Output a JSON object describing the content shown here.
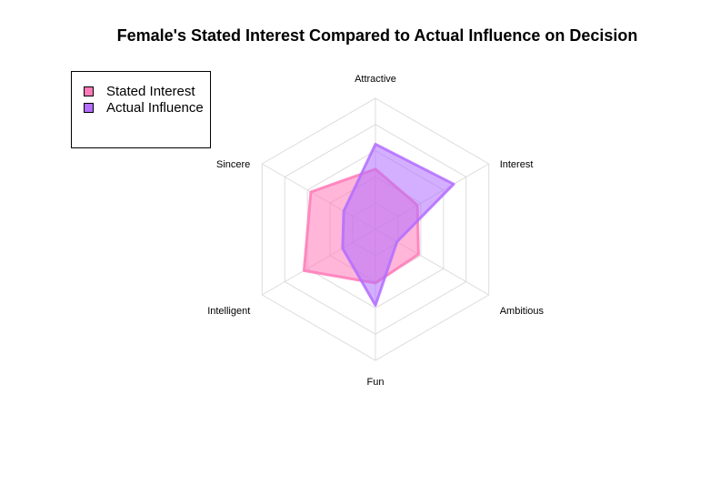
{
  "chart_data": {
    "type": "radar",
    "title": "Female's Stated Interest Compared to Actual Influence on Decision",
    "axes": [
      "Attractive",
      "Interest",
      "Ambitious",
      "Fun",
      "Intelligent",
      "Sincere"
    ],
    "rlim": [
      0,
      1
    ],
    "grid_levels": 5,
    "grid": true,
    "legend_position": "top-left",
    "series": [
      {
        "name": "Stated Interest",
        "color": "#ff7ab8",
        "values": [
          0.46,
          0.37,
          0.38,
          0.41,
          0.63,
          0.57
        ]
      },
      {
        "name": "Actual Influence",
        "color": "#b36dff",
        "values": [
          0.65,
          0.69,
          0.19,
          0.58,
          0.29,
          0.28
        ]
      }
    ]
  }
}
